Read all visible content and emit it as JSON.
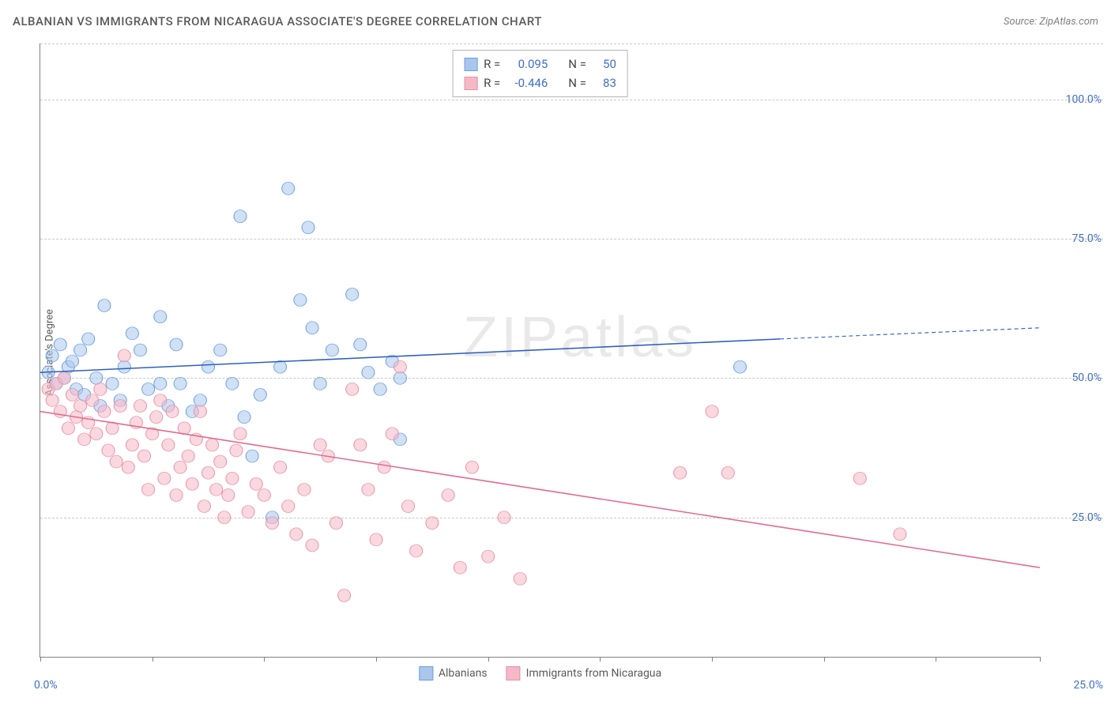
{
  "chart": {
    "title": "ALBANIAN VS IMMIGRANTS FROM NICARAGUA ASSOCIATE'S DEGREE CORRELATION CHART",
    "source_label": "Source: ZipAtlas.com",
    "watermark": "ZIPatlas",
    "y_axis_label": "Associate's Degree",
    "type": "scatter-with-trend",
    "background_color": "#ffffff",
    "grid_color": "#c8c8c8",
    "axis_color": "#808080",
    "tick_label_color": "#3f6fc9",
    "text_color": "#5a5a5a",
    "xlim": [
      0,
      25
    ],
    "ylim": [
      0,
      110
    ],
    "y_ticks": [
      25,
      50,
      75,
      100
    ],
    "y_tick_labels": [
      "25.0%",
      "50.0%",
      "75.0%",
      "100.0%"
    ],
    "x_tick_positions": [
      0,
      2.8,
      5.6,
      8.4,
      11.2,
      14,
      16.8,
      19.6,
      22.4,
      25
    ],
    "x_left_label": "0.0%",
    "x_right_label": "25.0%",
    "marker_radius": 8,
    "marker_opacity": 0.55,
    "trend_line_width": 2.5,
    "series": [
      {
        "name": "Albanians",
        "color_fill": "#a9c6ed",
        "color_stroke": "#6a9fe0",
        "trend_color": "#2f5fc0",
        "R": "0.095",
        "N": "50",
        "trend": {
          "x1": 0,
          "y1": 51,
          "x2": 18.5,
          "y2": 57,
          "x2_dash": 25,
          "y2_dash": 59
        },
        "points": [
          [
            0.2,
            51
          ],
          [
            0.3,
            54
          ],
          [
            0.4,
            49
          ],
          [
            0.5,
            56
          ],
          [
            0.6,
            50
          ],
          [
            0.7,
            52
          ],
          [
            0.8,
            53
          ],
          [
            0.9,
            48
          ],
          [
            1.0,
            55
          ],
          [
            1.1,
            47
          ],
          [
            1.2,
            57
          ],
          [
            1.4,
            50
          ],
          [
            1.5,
            45
          ],
          [
            1.6,
            63
          ],
          [
            1.8,
            49
          ],
          [
            2.0,
            46
          ],
          [
            2.1,
            52
          ],
          [
            2.3,
            58
          ],
          [
            2.5,
            55
          ],
          [
            2.7,
            48
          ],
          [
            3.0,
            61
          ],
          [
            3.0,
            49
          ],
          [
            3.2,
            45
          ],
          [
            3.4,
            56
          ],
          [
            3.5,
            49
          ],
          [
            3.8,
            44
          ],
          [
            4.0,
            46
          ],
          [
            4.2,
            52
          ],
          [
            4.5,
            55
          ],
          [
            4.8,
            49
          ],
          [
            5.0,
            79
          ],
          [
            5.1,
            43
          ],
          [
            5.3,
            36
          ],
          [
            5.5,
            47
          ],
          [
            5.8,
            25
          ],
          [
            6.0,
            52
          ],
          [
            6.2,
            84
          ],
          [
            6.5,
            64
          ],
          [
            6.7,
            77
          ],
          [
            6.8,
            59
          ],
          [
            7.0,
            49
          ],
          [
            7.3,
            55
          ],
          [
            7.8,
            65
          ],
          [
            8.0,
            56
          ],
          [
            8.2,
            51
          ],
          [
            8.5,
            48
          ],
          [
            8.8,
            53
          ],
          [
            9.0,
            39
          ],
          [
            9.0,
            50
          ],
          [
            17.5,
            52
          ]
        ]
      },
      {
        "name": "Immigrants from Nicaragua",
        "color_fill": "#f5b8c6",
        "color_stroke": "#eb8fa8",
        "trend_color": "#e36a8f",
        "R": "-0.446",
        "N": "83",
        "trend": {
          "x1": 0,
          "y1": 44,
          "x2": 25,
          "y2": 16,
          "x2_dash": 25,
          "y2_dash": 16
        },
        "points": [
          [
            0.2,
            48
          ],
          [
            0.3,
            46
          ],
          [
            0.4,
            49
          ],
          [
            0.5,
            44
          ],
          [
            0.6,
            50
          ],
          [
            0.7,
            41
          ],
          [
            0.8,
            47
          ],
          [
            0.9,
            43
          ],
          [
            1.0,
            45
          ],
          [
            1.1,
            39
          ],
          [
            1.2,
            42
          ],
          [
            1.3,
            46
          ],
          [
            1.4,
            40
          ],
          [
            1.5,
            48
          ],
          [
            1.6,
            44
          ],
          [
            1.7,
            37
          ],
          [
            1.8,
            41
          ],
          [
            1.9,
            35
          ],
          [
            2.0,
            45
          ],
          [
            2.1,
            54
          ],
          [
            2.2,
            34
          ],
          [
            2.3,
            38
          ],
          [
            2.4,
            42
          ],
          [
            2.5,
            45
          ],
          [
            2.6,
            36
          ],
          [
            2.7,
            30
          ],
          [
            2.8,
            40
          ],
          [
            2.9,
            43
          ],
          [
            3.0,
            46
          ],
          [
            3.1,
            32
          ],
          [
            3.2,
            38
          ],
          [
            3.3,
            44
          ],
          [
            3.4,
            29
          ],
          [
            3.5,
            34
          ],
          [
            3.6,
            41
          ],
          [
            3.7,
            36
          ],
          [
            3.8,
            31
          ],
          [
            3.9,
            39
          ],
          [
            4.0,
            44
          ],
          [
            4.1,
            27
          ],
          [
            4.2,
            33
          ],
          [
            4.3,
            38
          ],
          [
            4.4,
            30
          ],
          [
            4.5,
            35
          ],
          [
            4.6,
            25
          ],
          [
            4.7,
            29
          ],
          [
            4.8,
            32
          ],
          [
            4.9,
            37
          ],
          [
            5.0,
            40
          ],
          [
            5.2,
            26
          ],
          [
            5.4,
            31
          ],
          [
            5.6,
            29
          ],
          [
            5.8,
            24
          ],
          [
            6.0,
            34
          ],
          [
            6.2,
            27
          ],
          [
            6.4,
            22
          ],
          [
            6.6,
            30
          ],
          [
            6.8,
            20
          ],
          [
            7.0,
            38
          ],
          [
            7.2,
            36
          ],
          [
            7.4,
            24
          ],
          [
            7.6,
            11
          ],
          [
            7.8,
            48
          ],
          [
            8.0,
            38
          ],
          [
            8.2,
            30
          ],
          [
            8.4,
            21
          ],
          [
            8.6,
            34
          ],
          [
            8.8,
            40
          ],
          [
            9.0,
            52
          ],
          [
            9.2,
            27
          ],
          [
            9.4,
            19
          ],
          [
            9.8,
            24
          ],
          [
            10.2,
            29
          ],
          [
            10.5,
            16
          ],
          [
            10.8,
            34
          ],
          [
            11.2,
            18
          ],
          [
            11.6,
            25
          ],
          [
            12.0,
            14
          ],
          [
            16.0,
            33
          ],
          [
            16.8,
            44
          ],
          [
            17.2,
            33
          ],
          [
            20.5,
            32
          ],
          [
            21.5,
            22
          ]
        ]
      }
    ],
    "stats_box": {
      "rows": [
        {
          "swatch_fill": "#a9c6ed",
          "swatch_stroke": "#6a9fe0",
          "r_label": "R =",
          "r_val": "0.095",
          "n_label": "N =",
          "n_val": "50"
        },
        {
          "swatch_fill": "#f5b8c6",
          "swatch_stroke": "#eb8fa8",
          "r_label": "R =",
          "r_val": "-0.446",
          "n_label": "N =",
          "n_val": "83"
        }
      ]
    }
  }
}
